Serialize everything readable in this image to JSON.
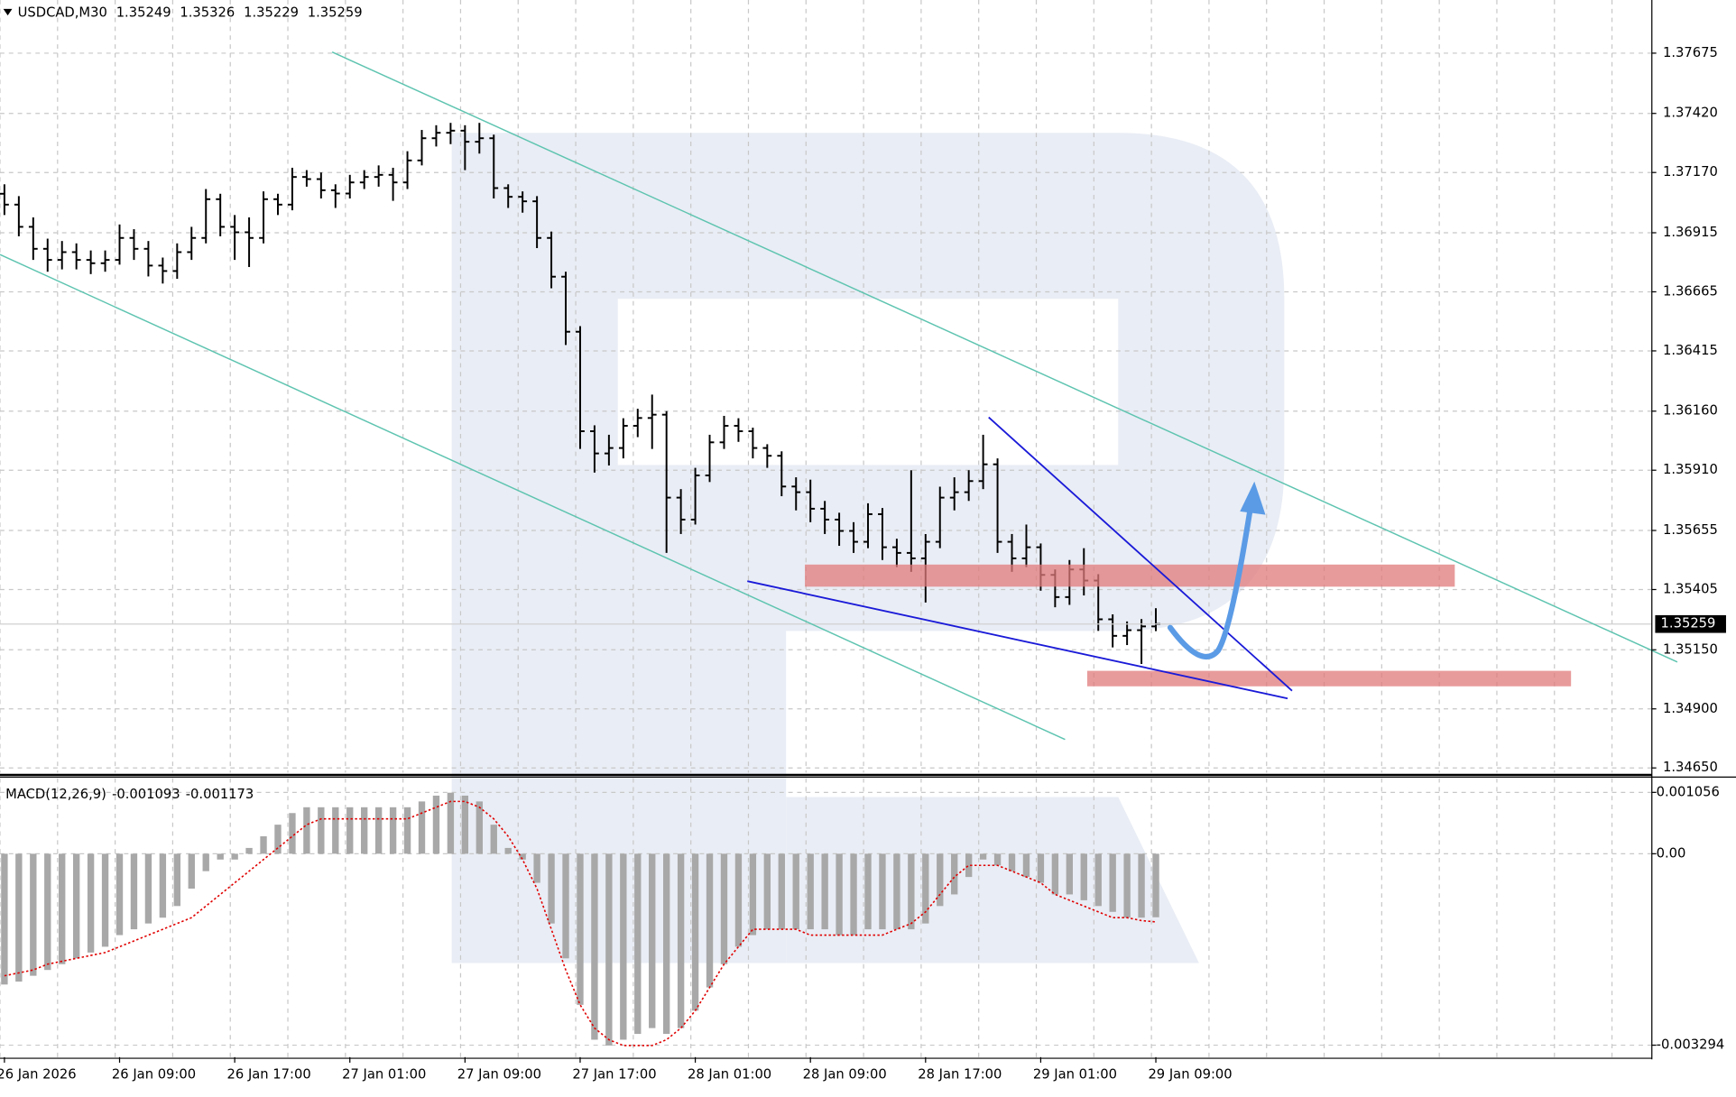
{
  "chart_data": [
    {
      "type": "ohlc",
      "title": "USDCAD,M30",
      "color": "#000000",
      "grid": true,
      "categories": [
        "26 Jan 2026",
        null,
        null,
        null,
        null,
        null,
        null,
        null,
        "26 Jan 09:00",
        null,
        null,
        null,
        null,
        null,
        null,
        null,
        "26 Jan 17:00",
        null,
        null,
        null,
        null,
        null,
        null,
        null,
        "27 Jan 01:00",
        null,
        null,
        null,
        null,
        null,
        null,
        null,
        "27 Jan 09:00",
        null,
        null,
        null,
        null,
        null,
        null,
        null,
        "27 Jan 17:00",
        null,
        null,
        null,
        null,
        null,
        null,
        null,
        "28 Jan 01:00",
        null,
        null,
        null,
        null,
        null,
        null,
        null,
        "28 Jan 09:00",
        null,
        null,
        null,
        null,
        null,
        null,
        null,
        "28 Jan 17:00",
        null,
        null,
        null,
        null,
        null,
        null,
        null,
        "29 Jan 01:00",
        null,
        null,
        null,
        null,
        null,
        null,
        null,
        "29 Jan 09:00"
      ],
      "open": [
        1.3708,
        1.37034,
        1.3694,
        1.36847,
        1.368,
        1.36833,
        1.368,
        1.36786,
        1.368,
        1.36893,
        1.36847,
        1.36776,
        1.36753,
        1.36833,
        1.36893,
        1.37057,
        1.3694,
        1.36917,
        1.36893,
        1.37057,
        1.37034,
        1.37151,
        1.37142,
        1.37095,
        1.37081,
        1.37128,
        1.37151,
        1.3716,
        1.37128,
        1.37221,
        1.37315,
        1.37338,
        1.37347,
        1.373,
        1.37315,
        1.37104,
        1.37067,
        1.37048,
        1.36893,
        1.36729,
        1.36496,
        1.36075,
        1.35981,
        1.36004,
        1.36098,
        1.36131,
        1.36145,
        1.35794,
        1.35701,
        1.35888,
        1.36028,
        1.36098,
        1.36075,
        1.36004,
        1.35971,
        1.35841,
        1.35817,
        1.35747,
        1.35701,
        1.35653,
        1.35607,
        1.35724,
        1.35584,
        1.3556,
        1.35537,
        1.35607,
        1.35794,
        1.35817,
        1.35864,
        1.35935,
        1.35607,
        1.35537,
        1.35584,
        1.35467,
        1.35373,
        1.3549,
        1.35443,
        1.35279,
        1.35209,
        1.35233,
        1.35249
      ],
      "high": [
        1.3712,
        1.3707,
        1.3698,
        1.3689,
        1.3688,
        1.3687,
        1.3684,
        1.3684,
        1.3695,
        1.3693,
        1.3688,
        1.3681,
        1.3687,
        1.3694,
        1.371,
        1.3708,
        1.3699,
        1.3698,
        1.3709,
        1.3708,
        1.3719,
        1.3718,
        1.3717,
        1.3712,
        1.3716,
        1.3718,
        1.372,
        1.3719,
        1.3726,
        1.3735,
        1.3737,
        1.3738,
        1.3737,
        1.3738,
        1.3733,
        1.3712,
        1.3709,
        1.3707,
        1.3692,
        1.3675,
        1.3652,
        1.361,
        1.3606,
        1.3613,
        1.3617,
        1.3623,
        1.3616,
        1.3583,
        1.3592,
        1.3606,
        1.3614,
        1.3613,
        1.3609,
        1.3602,
        1.3599,
        1.3588,
        1.3587,
        1.3578,
        1.3573,
        1.3569,
        1.3577,
        1.3575,
        1.3562,
        1.3591,
        1.3564,
        1.3584,
        1.3588,
        1.3591,
        1.3606,
        1.3596,
        1.3564,
        1.3568,
        1.356,
        1.3549,
        1.3553,
        1.3558,
        1.3547,
        1.353,
        1.3527,
        1.3528,
        1.35326
      ],
      "low": [
        1.3699,
        1.369,
        1.368,
        1.3675,
        1.3676,
        1.3676,
        1.3674,
        1.3675,
        1.3678,
        1.368,
        1.3673,
        1.367,
        1.3672,
        1.368,
        1.3687,
        1.369,
        1.368,
        1.3677,
        1.3687,
        1.3699,
        1.3701,
        1.3711,
        1.3706,
        1.3702,
        1.3706,
        1.371,
        1.3711,
        1.3705,
        1.371,
        1.372,
        1.3728,
        1.3729,
        1.3718,
        1.3725,
        1.3706,
        1.3702,
        1.37,
        1.3685,
        1.3668,
        1.3644,
        1.36,
        1.359,
        1.3593,
        1.3596,
        1.3605,
        1.36,
        1.3556,
        1.3564,
        1.3568,
        1.3586,
        1.36,
        1.3603,
        1.3596,
        1.3592,
        1.358,
        1.3574,
        1.3569,
        1.3564,
        1.3559,
        1.3556,
        1.3558,
        1.3553,
        1.355,
        1.3548,
        1.3535,
        1.3558,
        1.3574,
        1.3578,
        1.3583,
        1.3556,
        1.3548,
        1.355,
        1.354,
        1.3533,
        1.3534,
        1.3538,
        1.3523,
        1.3516,
        1.3517,
        1.3509,
        1.35229
      ],
      "close": [
        1.37034,
        1.3694,
        1.36847,
        1.368,
        1.36833,
        1.368,
        1.36786,
        1.368,
        1.36893,
        1.36847,
        1.36776,
        1.36753,
        1.36833,
        1.36893,
        1.37057,
        1.3694,
        1.36917,
        1.36893,
        1.37057,
        1.37034,
        1.37151,
        1.37142,
        1.37095,
        1.37081,
        1.37128,
        1.37151,
        1.3716,
        1.37128,
        1.37221,
        1.37315,
        1.37338,
        1.37347,
        1.373,
        1.37315,
        1.37104,
        1.37067,
        1.37048,
        1.36893,
        1.36729,
        1.36496,
        1.36075,
        1.35981,
        1.36004,
        1.36098,
        1.36131,
        1.36145,
        1.35794,
        1.35701,
        1.35888,
        1.36028,
        1.36098,
        1.36075,
        1.36004,
        1.35971,
        1.35841,
        1.35817,
        1.35747,
        1.35701,
        1.35653,
        1.35607,
        1.35724,
        1.35584,
        1.3556,
        1.35537,
        1.35607,
        1.35794,
        1.35817,
        1.35864,
        1.35935,
        1.35607,
        1.35537,
        1.35584,
        1.35467,
        1.35373,
        1.3549,
        1.35443,
        1.35279,
        1.35209,
        1.35233,
        1.35249,
        1.35259
      ],
      "ylim": [
        1.3463,
        1.379
      ],
      "yticks": [
        1.37675,
        {
          "value": 1.3742,
          "label": "1.37420"
        },
        {
          "value": 1.3717,
          "label": "1.37170"
        },
        1.36915,
        1.36665,
        1.36415,
        {
          "value": 1.3616,
          "label": "1.36160"
        },
        {
          "value": 1.3591,
          "label": "1.35910"
        },
        1.35655,
        1.35405,
        {
          "value": 1.3515,
          "label": "1.35150"
        },
        {
          "value": 1.349,
          "label": "1.34900"
        },
        {
          "value": 1.3465,
          "label": "1.34650"
        }
      ]
    },
    {
      "type": "macd",
      "title": "MACD(12,26,9)",
      "grid": true,
      "series": [
        {
          "color": "#a8a8a8",
          "values": [
            -0.00225,
            -0.0022,
            -0.0021,
            -0.002,
            -0.0019,
            -0.0018,
            -0.0017,
            -0.0016,
            -0.0014,
            -0.0013,
            -0.0012,
            -0.0011,
            -0.0009,
            -0.0006,
            -0.0003,
            -0.0001,
            -0.0001,
            0.0001,
            0.0003,
            0.0005,
            0.0007,
            0.0008,
            0.0008,
            0.0008,
            0.0008,
            0.0008,
            0.0008,
            0.0008,
            0.0008,
            0.0009,
            0.001,
            0.00105,
            0.001,
            0.0009,
            0.0005,
            0.0001,
            -0.0001,
            -0.0005,
            -0.0012,
            -0.0018,
            -0.0026,
            -0.0032,
            -0.0033,
            -0.0032,
            -0.0031,
            -0.003,
            -0.0031,
            -0.003,
            -0.0027,
            -0.0023,
            -0.0019,
            -0.0016,
            -0.0014,
            -0.0013,
            -0.0013,
            -0.0013,
            -0.0013,
            -0.0013,
            -0.0014,
            -0.0014,
            -0.0013,
            -0.0013,
            -0.0013,
            -0.0013,
            -0.0012,
            -0.0009,
            -0.0007,
            -0.0004,
            -0.0001,
            -0.0002,
            -0.0003,
            -0.0004,
            -0.0005,
            -0.0007,
            -0.0007,
            -0.0008,
            -0.0009,
            -0.001,
            -0.0011,
            -0.0011,
            -0.001093
          ]
        },
        {
          "color": "#e00000",
          "values": [
            -0.0021,
            -0.00205,
            -0.002,
            -0.0019,
            -0.00185,
            -0.0018,
            -0.00175,
            -0.0017,
            -0.0016,
            -0.0015,
            -0.0014,
            -0.0013,
            -0.0012,
            -0.0011,
            -0.0009,
            -0.0007,
            -0.0005,
            -0.0003,
            -0.0001,
            0.0001,
            0.0003,
            0.0005,
            0.0006,
            0.0006,
            0.0006,
            0.0006,
            0.0006,
            0.0006,
            0.0006,
            0.0007,
            0.0008,
            0.0009,
            0.0009,
            0.0008,
            0.0006,
            0.0003,
            -0.0001,
            -0.0006,
            -0.0013,
            -0.002,
            -0.0026,
            -0.003,
            -0.0032,
            -0.0033,
            -0.0033,
            -0.0033,
            -0.0032,
            -0.003,
            -0.0027,
            -0.0023,
            -0.0019,
            -0.0016,
            -0.0013,
            -0.0013,
            -0.0013,
            -0.0013,
            -0.0014,
            -0.0014,
            -0.0014,
            -0.0014,
            -0.0014,
            -0.0014,
            -0.0013,
            -0.0012,
            -0.001,
            -0.0007,
            -0.0004,
            -0.0002,
            -0.0002,
            -0.0002,
            -0.0003,
            -0.0004,
            -0.0005,
            -0.0007,
            -0.0008,
            -0.0009,
            -0.001,
            -0.0011,
            -0.0011,
            -0.00115,
            -0.001173
          ]
        }
      ],
      "ylim": [
        -0.0035,
        0.0013
      ],
      "yticks": [
        0.001056,
        {
          "value": 0,
          "label": "0.00"
        },
        -0.003294
      ]
    }
  ]
}
